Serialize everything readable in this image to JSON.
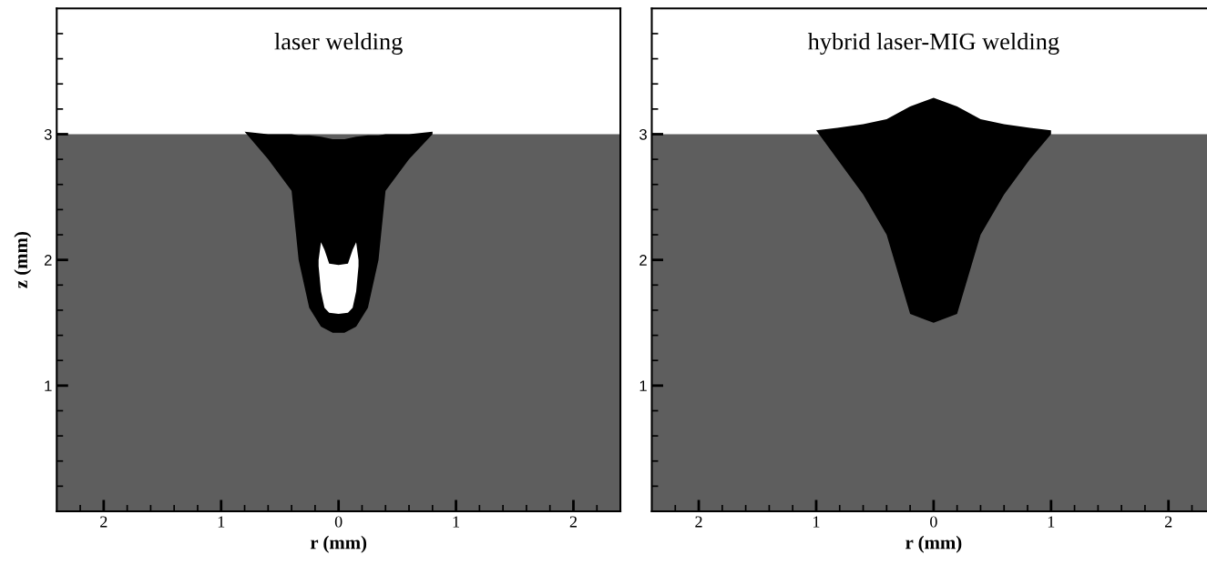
{
  "chart_data": [
    {
      "type": "area",
      "title": "laser welding",
      "xlabel": "r (mm)",
      "ylabel": "z (mm)",
      "xlim": [
        -2.4,
        2.4
      ],
      "ylim": [
        0,
        4
      ],
      "xticks": [
        {
          "value": -2,
          "label": "2"
        },
        {
          "value": -1,
          "label": "1"
        },
        0,
        {
          "value": 1,
          "label": "1"
        },
        {
          "value": 2,
          "label": "2"
        },
        {
          "value": -2.2,
          "label": null
        },
        {
          "value": -1.8,
          "label": null
        },
        {
          "value": -1.6,
          "label": null
        },
        {
          "value": -1.4,
          "label": null
        },
        {
          "value": -1.2,
          "label": null
        },
        {
          "value": -0.8,
          "label": null
        },
        {
          "value": -0.6,
          "label": null
        },
        {
          "value": -0.4,
          "label": null
        },
        {
          "value": -0.2,
          "label": null
        },
        {
          "value": 0.2,
          "label": null
        },
        {
          "value": 0.4,
          "label": null
        },
        {
          "value": 0.6,
          "label": null
        },
        {
          "value": 0.8,
          "label": null
        },
        {
          "value": 1.2,
          "label": null
        },
        {
          "value": 1.4,
          "label": null
        },
        {
          "value": 1.6,
          "label": null
        },
        {
          "value": 1.8,
          "label": null
        },
        {
          "value": 2.2,
          "label": null
        }
      ],
      "yticks": [
        1,
        2,
        3,
        {
          "value": 0.2,
          "label": null
        },
        {
          "value": 0.4,
          "label": null
        },
        {
          "value": 0.6,
          "label": null
        },
        {
          "value": 0.8,
          "label": null
        },
        {
          "value": 1.2,
          "label": null
        },
        {
          "value": 1.4,
          "label": null
        },
        {
          "value": 1.6,
          "label": null
        },
        {
          "value": 1.8,
          "label": null
        },
        {
          "value": 2.2,
          "label": null
        },
        {
          "value": 2.4,
          "label": null
        },
        {
          "value": 2.6,
          "label": null
        },
        {
          "value": 2.8,
          "label": null
        },
        {
          "value": 3.2,
          "label": null
        },
        {
          "value": 3.4,
          "label": null
        },
        {
          "value": 3.6,
          "label": null
        },
        {
          "value": 3.8,
          "label": null
        }
      ],
      "series": [
        {
          "color": "#5e5e5e",
          "x": [
            -2.4,
            2.4,
            2.4,
            -2.4
          ],
          "values": [
            3,
            3,
            0,
            0
          ]
        },
        {
          "color": "#000000",
          "x": [
            -0.8,
            -0.6,
            -0.4,
            -0.34,
            -0.25,
            -0.15,
            -0.05,
            0,
            0.05,
            0.15,
            0.25,
            0.34,
            0.4,
            0.6,
            0.8,
            0.8,
            0.6,
            0.4,
            0.34,
            0.25,
            0.15,
            0.05,
            -0.05,
            -0.15,
            -0.25,
            -0.34,
            -0.4,
            -0.6
          ],
          "values": [
            3.02,
            3.0,
            3.0,
            2.99,
            2.99,
            2.98,
            2.96,
            2.96,
            2.96,
            2.98,
            2.99,
            2.99,
            3.0,
            3.0,
            3.02,
            3.0,
            2.8,
            2.55,
            2.0,
            1.62,
            1.47,
            1.42,
            1.42,
            1.47,
            1.62,
            2.0,
            2.55,
            2.8
          ]
        },
        {
          "color": "#ffffff",
          "x": [
            -0.17,
            -0.15,
            -0.12,
            -0.08,
            0,
            0.08,
            0.12,
            0.15,
            0.17,
            0.17,
            0.15,
            0.12,
            0.08,
            0,
            -0.08,
            -0.12,
            -0.15,
            -0.17
          ],
          "values": [
            2.0,
            2.14,
            2.08,
            1.97,
            1.96,
            1.97,
            2.08,
            2.14,
            2.0,
            1.95,
            1.75,
            1.62,
            1.58,
            1.57,
            1.58,
            1.62,
            1.75,
            1.95
          ]
        }
      ]
    },
    {
      "type": "area",
      "title": "hybrid laser-MIG welding",
      "xlabel": "r (mm)",
      "xlim": [
        -2.4,
        2.4
      ],
      "ylim": [
        0,
        4
      ],
      "xticks": [
        {
          "value": -2,
          "label": "2"
        },
        {
          "value": -1,
          "label": "1"
        },
        0,
        {
          "value": 1,
          "label": "1"
        },
        {
          "value": 2,
          "label": "2"
        },
        {
          "value": -2.2,
          "label": null
        },
        {
          "value": -1.8,
          "label": null
        },
        {
          "value": -1.6,
          "label": null
        },
        {
          "value": -1.4,
          "label": null
        },
        {
          "value": -1.2,
          "label": null
        },
        {
          "value": -0.8,
          "label": null
        },
        {
          "value": -0.6,
          "label": null
        },
        {
          "value": -0.4,
          "label": null
        },
        {
          "value": -0.2,
          "label": null
        },
        {
          "value": 0.2,
          "label": null
        },
        {
          "value": 0.4,
          "label": null
        },
        {
          "value": 0.6,
          "label": null
        },
        {
          "value": 0.8,
          "label": null
        },
        {
          "value": 1.2,
          "label": null
        },
        {
          "value": 1.4,
          "label": null
        },
        {
          "value": 1.6,
          "label": null
        },
        {
          "value": 1.8,
          "label": null
        },
        {
          "value": 2.2,
          "label": null
        }
      ],
      "yticks": [
        1,
        2,
        3,
        {
          "value": 0.2,
          "label": null
        },
        {
          "value": 0.4,
          "label": null
        },
        {
          "value": 0.6,
          "label": null
        },
        {
          "value": 0.8,
          "label": null
        },
        {
          "value": 1.2,
          "label": null
        },
        {
          "value": 1.4,
          "label": null
        },
        {
          "value": 1.6,
          "label": null
        },
        {
          "value": 1.8,
          "label": null
        },
        {
          "value": 2.2,
          "label": null
        },
        {
          "value": 2.4,
          "label": null
        },
        {
          "value": 2.6,
          "label": null
        },
        {
          "value": 2.8,
          "label": null
        },
        {
          "value": 3.2,
          "label": null
        },
        {
          "value": 3.4,
          "label": null
        },
        {
          "value": 3.6,
          "label": null
        },
        {
          "value": 3.8,
          "label": null
        }
      ],
      "series": [
        {
          "color": "#5e5e5e",
          "x": [
            -2.4,
            2.4,
            2.4,
            -2.4
          ],
          "values": [
            3,
            3,
            0,
            0
          ]
        },
        {
          "color": "#000000",
          "x": [
            -1.0,
            -0.82,
            -0.6,
            -0.4,
            -0.2,
            0,
            0.2,
            0.4,
            0.6,
            0.82,
            1.0,
            1.0,
            0.82,
            0.6,
            0.4,
            0.2,
            0,
            -0.2,
            -0.4,
            -0.6,
            -0.82
          ],
          "values": [
            3.03,
            3.05,
            3.08,
            3.12,
            3.22,
            3.29,
            3.22,
            3.12,
            3.08,
            3.05,
            3.03,
            3.0,
            2.8,
            2.52,
            2.2,
            1.57,
            1.5,
            1.57,
            2.2,
            2.52,
            2.8
          ]
        }
      ]
    }
  ]
}
